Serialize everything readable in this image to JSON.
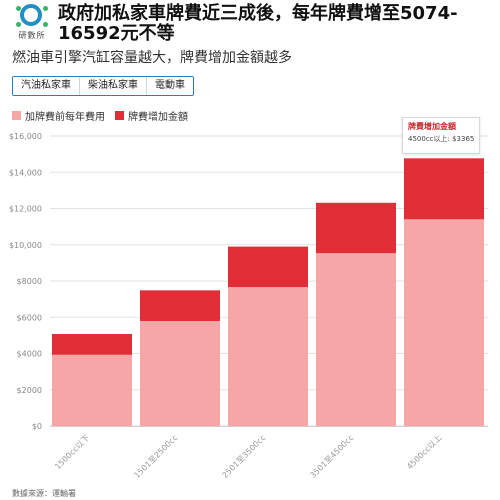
{
  "logo": {
    "text": "研數所",
    "colors": {
      "ring": "#1f8fc6",
      "dot": "#39b36a"
    }
  },
  "header": {
    "title": "政府加私家車牌費近三成後，每年牌費增至5074-16592元不等",
    "subtitle": "燃油車引擎汽缸容量越大，牌費增加金額越多"
  },
  "tabs": [
    {
      "label": "汽油私家車",
      "active": true
    },
    {
      "label": "柴油私家車",
      "active": false
    },
    {
      "label": "電動車",
      "active": false
    }
  ],
  "legend": [
    {
      "label": "加牌費前每年費用",
      "color": "#f6a6a6"
    },
    {
      "label": "牌費增加金額",
      "color": "#e12d35"
    }
  ],
  "tooltip": {
    "title": "牌費增加金額",
    "value": "4500cc以上: $3365"
  },
  "source": "數據來源：運輸署",
  "chart_data": {
    "type": "bar",
    "stacked": true,
    "categories": [
      "1500cc以下",
      "1501至2500cc",
      "2501至3500cc",
      "3501至4500cc",
      "4500cc以上"
    ],
    "series": [
      {
        "name": "加牌費前每年費用",
        "values": [
          3929,
          5794,
          7664,
          9534,
          11404
        ],
        "color": "#f6a6a6"
      },
      {
        "name": "牌費增加金額",
        "values": [
          1145,
          1690,
          2235,
          2780,
          3365
        ],
        "color": "#e12d35"
      }
    ],
    "yticks": [
      "$0",
      "$2000",
      "$4000",
      "$6000",
      "$8000",
      "$10,000",
      "$12,000",
      "$14,000",
      "$16,000"
    ],
    "ylim": [
      0,
      16000
    ],
    "grid": true,
    "legend_position": "top-left"
  }
}
